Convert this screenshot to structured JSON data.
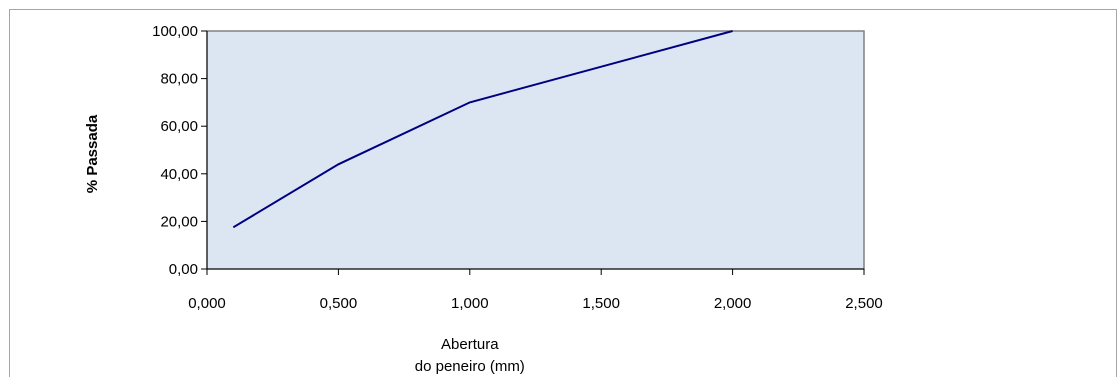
{
  "chart_data": {
    "type": "line",
    "title": "",
    "xlabel_lines": [
      "Abertura",
      "do peneiro (mm)"
    ],
    "ylabel": "% Passada",
    "xlim": [
      0,
      2.5
    ],
    "ylim": [
      0,
      100
    ],
    "x_ticks": [
      "0,000",
      "0,500",
      "1,000",
      "1,500",
      "2,000",
      "2,500"
    ],
    "y_ticks": [
      "0,00",
      "20,00",
      "40,00",
      "60,00",
      "80,00",
      "100,00"
    ],
    "grid": false,
    "legend": "none",
    "series": [
      {
        "x": [
          0.1,
          0.5,
          1.0,
          2.0
        ],
        "y": [
          17.5,
          44.0,
          70.0,
          100.0
        ]
      }
    ],
    "colors": {
      "plot_background": "#dce6f2",
      "line": "#000080",
      "plot_border": "#808080"
    }
  }
}
